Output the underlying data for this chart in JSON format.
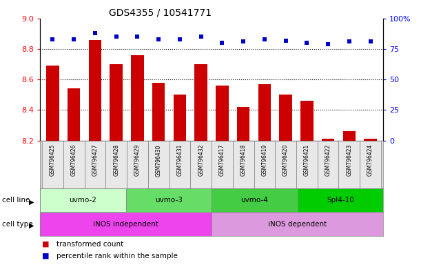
{
  "title": "GDS4355 / 10541771",
  "samples": [
    "GSM796425",
    "GSM796426",
    "GSM796427",
    "GSM796428",
    "GSM796429",
    "GSM796430",
    "GSM796431",
    "GSM796432",
    "GSM796417",
    "GSM796418",
    "GSM796419",
    "GSM796420",
    "GSM796421",
    "GSM796422",
    "GSM796423",
    "GSM796424"
  ],
  "transformed_count": [
    8.69,
    8.54,
    8.86,
    8.7,
    8.76,
    8.58,
    8.5,
    8.7,
    8.56,
    8.42,
    8.57,
    8.5,
    8.46,
    8.21,
    8.26,
    8.21
  ],
  "percentile_rank": [
    83,
    83,
    88,
    85,
    85,
    83,
    83,
    85,
    80,
    81,
    83,
    82,
    80,
    79,
    81,
    81
  ],
  "ylim_left": [
    8.2,
    9.0
  ],
  "ylim_right": [
    0,
    100
  ],
  "yticks_left": [
    8.2,
    8.4,
    8.6,
    8.8,
    9.0
  ],
  "yticks_right": [
    0,
    25,
    50,
    75,
    100
  ],
  "ytick_labels_right": [
    "0",
    "25",
    "50",
    "75",
    "100%"
  ],
  "bar_color": "#cc0000",
  "dot_color": "#0000cc",
  "cell_lines": [
    {
      "label": "uvmo-2",
      "start": 0,
      "end": 3,
      "color": "#ccffcc"
    },
    {
      "label": "uvmo-3",
      "start": 4,
      "end": 7,
      "color": "#66dd66"
    },
    {
      "label": "uvmo-4",
      "start": 8,
      "end": 11,
      "color": "#44cc44"
    },
    {
      "label": "Spl4-10",
      "start": 12,
      "end": 15,
      "color": "#00cc00"
    }
  ],
  "cell_types": [
    {
      "label": "iNOS independent",
      "start": 0,
      "end": 7,
      "color": "#ee44ee"
    },
    {
      "label": "iNOS dependent",
      "start": 8,
      "end": 15,
      "color": "#dd99dd"
    }
  ],
  "legend_items": [
    {
      "label": "transformed count",
      "color": "#cc0000"
    },
    {
      "label": "percentile rank within the sample",
      "color": "#0000cc"
    }
  ]
}
